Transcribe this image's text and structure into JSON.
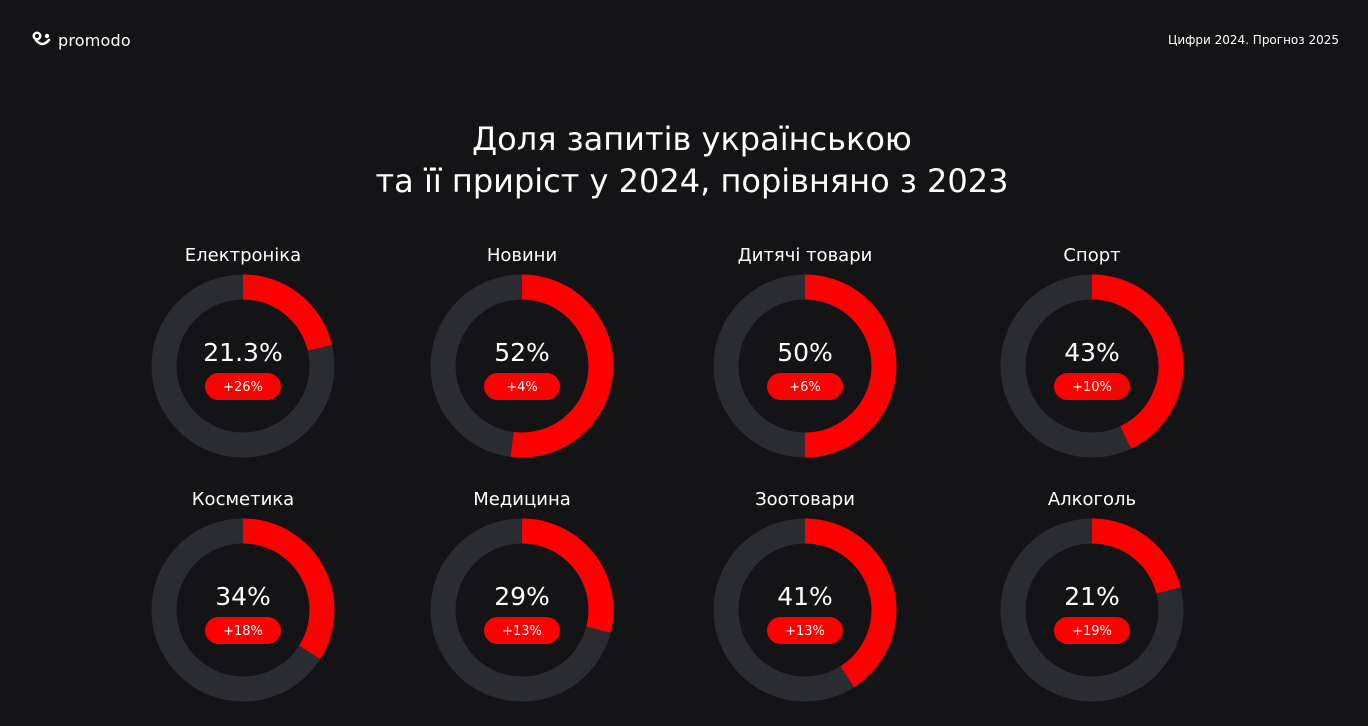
{
  "header": {
    "logo_text": "promodo",
    "right_text": "Цифри 2024. Прогноз 2025"
  },
  "title": {
    "line1": "Доля запитів українською",
    "line2": "та її приріст у 2024, порівняно з 2023"
  },
  "colors": {
    "background": "#141417",
    "accent": "#FF0000",
    "track": "#2B2B32",
    "text": "#FFFFFF"
  },
  "chart_data": {
    "type": "pie",
    "variant": "donut",
    "title": "Доля запитів українською та її приріст у 2024, порівняно з 2023",
    "categories": [
      "Електроніка",
      "Новини",
      "Дитячі товари",
      "Спорт",
      "Косметика",
      "Медицина",
      "Зоотовари",
      "Алкоголь"
    ],
    "items": [
      {
        "category": "Електроніка",
        "share": 21.3,
        "share_label": "21.3%",
        "growth_label": "+26%"
      },
      {
        "category": "Новини",
        "share": 52,
        "share_label": "52%",
        "growth_label": "+4%"
      },
      {
        "category": "Дитячі товари",
        "share": 50,
        "share_label": "50%",
        "growth_label": "+6%"
      },
      {
        "category": "Спорт",
        "share": 43,
        "share_label": "43%",
        "growth_label": "+10%"
      },
      {
        "category": "Косметика",
        "share": 34,
        "share_label": "34%",
        "growth_label": "+18%"
      },
      {
        "category": "Медицина",
        "share": 29,
        "share_label": "29%",
        "growth_label": "+13%"
      },
      {
        "category": "Зоотовари",
        "share": 41,
        "share_label": "41%",
        "growth_label": "+13%"
      },
      {
        "category": "Алкоголь",
        "share": 21,
        "share_label": "21%",
        "growth_label": "+19%"
      }
    ]
  }
}
